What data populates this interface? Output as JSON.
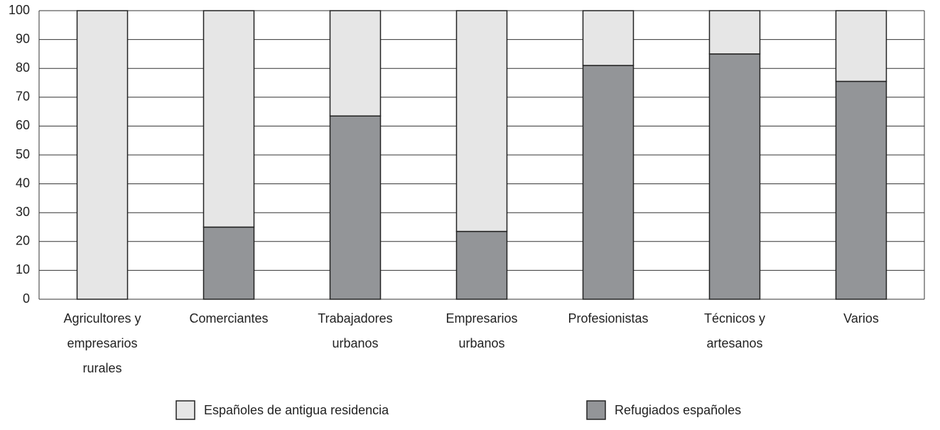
{
  "chart_data": {
    "type": "stacked_bar",
    "categories": [
      "Agricultores y empresarios rurales",
      "Comerciantes",
      "Trabajadores urbanos",
      "Empresarios urbanos",
      "Profesionistas",
      "Técnicos y artesanos",
      "Varios"
    ],
    "series": [
      {
        "name": "Españoles de antigua residencia",
        "color": "#e6e6e6",
        "values": [
          100,
          75,
          36.5,
          76.5,
          19,
          15,
          24.5
        ]
      },
      {
        "name": "Refugiados españoles",
        "color": "#939598",
        "values": [
          0,
          25,
          63.5,
          23.5,
          81,
          85,
          75.5
        ]
      }
    ],
    "ylim": [
      0,
      100
    ],
    "yticks": [
      0,
      10,
      20,
      30,
      40,
      50,
      60,
      70,
      80,
      90,
      100
    ],
    "grid": true,
    "legend": "bottom"
  }
}
